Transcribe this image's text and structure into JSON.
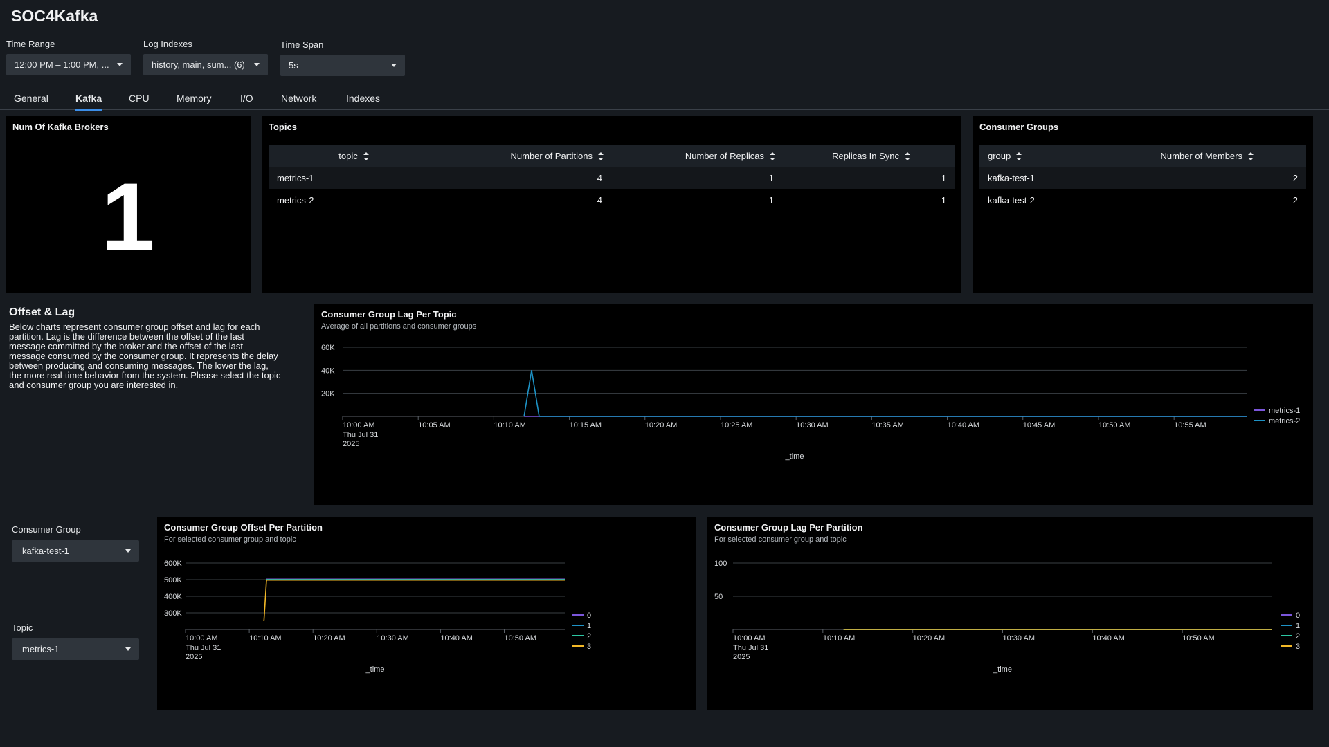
{
  "app": {
    "title": "SOC4Kafka"
  },
  "inputs": {
    "time_range": {
      "label": "Time Range",
      "value": "12:00 PM – 1:00 PM, ..."
    },
    "log_indexes": {
      "label": "Log Indexes",
      "value": "history, main, sum... (6)"
    },
    "time_span": {
      "label": "Time Span",
      "value": "5s"
    }
  },
  "tabs": [
    {
      "label": "General"
    },
    {
      "label": "Kafka",
      "active": true
    },
    {
      "label": "CPU"
    },
    {
      "label": "Memory"
    },
    {
      "label": "I/O"
    },
    {
      "label": "Network"
    },
    {
      "label": "Indexes"
    }
  ],
  "brokers": {
    "title": "Num Of Kafka Brokers",
    "value": "1"
  },
  "topics": {
    "title": "Topics",
    "columns": [
      "topic",
      "Number of Partitions",
      "Number of Replicas",
      "Replicas In Sync"
    ],
    "rows": [
      [
        "metrics-1",
        "4",
        "1",
        "1"
      ],
      [
        "metrics-2",
        "4",
        "1",
        "1"
      ]
    ]
  },
  "consumer_groups": {
    "title": "Consumer Groups",
    "columns": [
      "group",
      "Number of Members"
    ],
    "rows": [
      [
        "kafka-test-1",
        "2"
      ],
      [
        "kafka-test-2",
        "2"
      ]
    ]
  },
  "offset_lag": {
    "title": "Offset & Lag",
    "lines": [
      "Below charts represent consumer group offset and lag for each",
      "partition. Lag is the difference between the offset of the last",
      "message committed by the broker and the offset of the last",
      "message consumed by the consumer group. It represents the delay",
      "between producing and consuming messages. The lower the lag,",
      "the more real-time behavior from the system. Please select the topic",
      "and consumer group you are interested in."
    ]
  },
  "filters": {
    "consumer_group": {
      "label": "Consumer Group",
      "value": "kafka-test-1"
    },
    "topic": {
      "label": "Topic",
      "value": "metrics-1"
    }
  },
  "chart_data": [
    {
      "type": "line",
      "title": "Consumer Group Lag Per Topic",
      "subtitle": "Average of all partitions and consumer groups",
      "xlabel": "_time",
      "x_ticks": [
        "10:00 AM",
        "10:05 AM",
        "10:10 AM",
        "10:15 AM",
        "10:20 AM",
        "10:25 AM",
        "10:30 AM",
        "10:35 AM",
        "10:40 AM",
        "10:45 AM",
        "10:50 AM",
        "10:55 AM"
      ],
      "x_date": [
        "Thu Jul 31",
        "2025"
      ],
      "x_range_min": [
        0,
        59.8
      ],
      "y_ticks": [
        "20K",
        "40K",
        "60K"
      ],
      "ylim": [
        0,
        60000
      ],
      "grid": true,
      "legend_position": "right",
      "series": [
        {
          "name": "metrics-1",
          "color": "#7b56db",
          "points": [
            [
              12,
              0
            ],
            [
              59.8,
              0
            ]
          ]
        },
        {
          "name": "metrics-2",
          "color": "#1e93c6",
          "points": [
            [
              12,
              0
            ],
            [
              12.5,
              40000
            ],
            [
              13,
              0
            ],
            [
              59.8,
              0
            ]
          ]
        }
      ]
    },
    {
      "type": "line",
      "title": "Consumer Group Offset Per Partition",
      "subtitle": "For selected consumer group and topic",
      "xlabel": "_time",
      "x_ticks": [
        "10:00 AM",
        "10:10 AM",
        "10:20 AM",
        "10:30 AM",
        "10:40 AM",
        "10:50 AM"
      ],
      "x_date": [
        "Thu Jul 31",
        "2025"
      ],
      "x_range_min": [
        0,
        59.5
      ],
      "y_ticks": [
        "300K",
        "400K",
        "500K",
        "600K"
      ],
      "ylim": [
        200000,
        600000
      ],
      "grid": true,
      "legend_position": "right",
      "series": [
        {
          "name": "0",
          "color": "#7b56db",
          "points": [
            [
              12.7,
              503000
            ],
            [
              59.5,
              503000
            ]
          ]
        },
        {
          "name": "1",
          "color": "#1e93c6",
          "points": [
            [
              12.7,
              501000
            ],
            [
              59.5,
              501000
            ]
          ]
        },
        {
          "name": "2",
          "color": "#2cc6a3",
          "points": [
            [
              12.7,
              499000
            ],
            [
              59.5,
              499000
            ]
          ]
        },
        {
          "name": "3",
          "color": "#f2b827",
          "points": [
            [
              12.3,
              250000
            ],
            [
              12.7,
              497000
            ],
            [
              59.5,
              497000
            ]
          ]
        }
      ]
    },
    {
      "type": "line",
      "title": "Consumer Group Lag Per Partition",
      "subtitle": "For selected consumer group and topic",
      "xlabel": "_time",
      "x_ticks": [
        "10:00 AM",
        "10:10 AM",
        "10:20 AM",
        "10:30 AM",
        "10:40 AM",
        "10:50 AM"
      ],
      "x_date": [
        "Thu Jul 31",
        "2025"
      ],
      "x_range_min": [
        0,
        60
      ],
      "y_ticks": [
        "50",
        "100"
      ],
      "ylim": [
        0,
        100
      ],
      "grid": true,
      "legend_position": "right",
      "series": [
        {
          "name": "0",
          "color": "#7b56db",
          "points": [
            [
              12.3,
              0
            ],
            [
              60,
              0
            ]
          ]
        },
        {
          "name": "1",
          "color": "#1e93c6",
          "points": [
            [
              12.3,
              0
            ],
            [
              60,
              0
            ]
          ]
        },
        {
          "name": "2",
          "color": "#2cc6a3",
          "points": [
            [
              12.3,
              0
            ],
            [
              60,
              0
            ]
          ]
        },
        {
          "name": "3",
          "color": "#f2b827",
          "points": [
            [
              12.3,
              0
            ],
            [
              60,
              0
            ]
          ]
        }
      ]
    }
  ]
}
